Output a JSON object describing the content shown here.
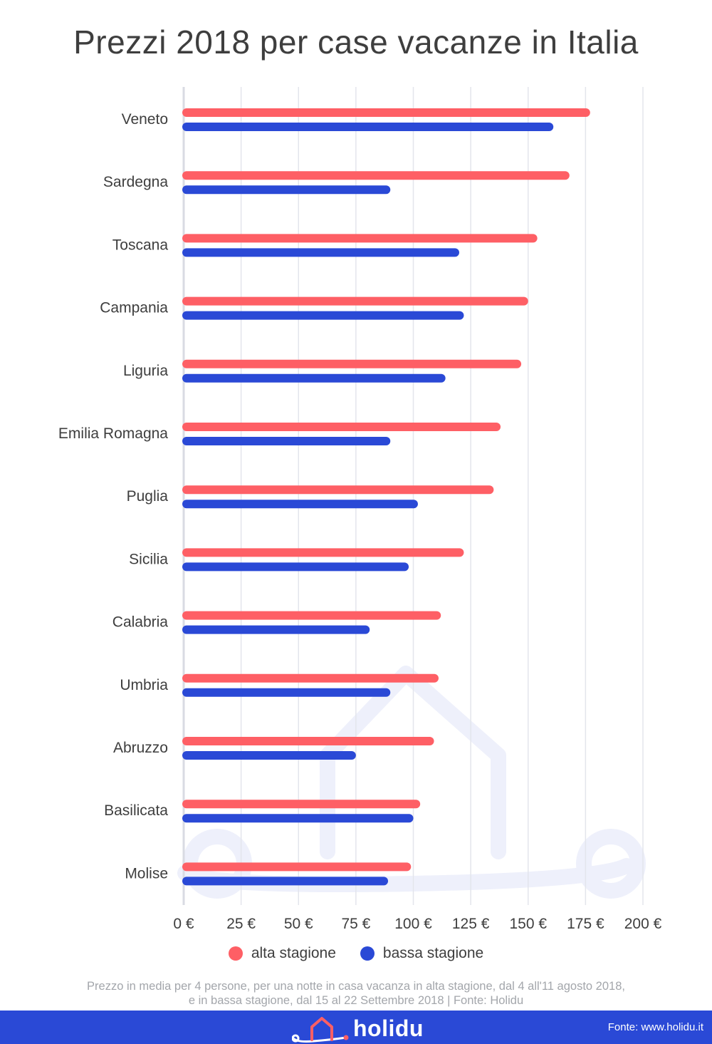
{
  "title": "Prezzi 2018 per case vacanze in Italia",
  "chart_data": {
    "type": "bar",
    "orientation": "horizontal",
    "title": "Prezzi 2018 per case vacanze in Italia",
    "categories": [
      "Veneto",
      "Sardegna",
      "Toscana",
      "Campania",
      "Liguria",
      "Emilia Romagna",
      "Puglia",
      "Sicilia",
      "Calabria",
      "Umbria",
      "Abruzzo",
      "Basilicata",
      "Molise"
    ],
    "series": [
      {
        "name": "alta stagione",
        "color": "#fe5f65",
        "values": [
          177,
          168,
          154,
          150,
          147,
          138,
          135,
          122,
          112,
          111,
          109,
          103,
          99
        ]
      },
      {
        "name": "bassa stagione",
        "color": "#2a49d6",
        "values": [
          161,
          90,
          120,
          122,
          114,
          90,
          102,
          98,
          81,
          90,
          75,
          100,
          89
        ]
      }
    ],
    "xlim": [
      0,
      200
    ],
    "ticks": [
      "0 €",
      "25 €",
      "50 €",
      "75 €",
      "100 €",
      "125 €",
      "150 €",
      "175 €",
      "200 €"
    ],
    "grid": true,
    "legend": "bottom"
  },
  "legend": {
    "alta_label": "alta stagione",
    "bassa_label": "bassa stagione",
    "alta_color": "#fe5f65",
    "bassa_color": "#2a49d6"
  },
  "footnote": {
    "line1": "Prezzo in media per 4 persone, per una notte in casa vacanza in alta stagione, dal 4 all'11 agosto 2018,",
    "line2": "e in bassa stagione, dal 15 al 22 Settembre 2018 | Fonte: Holidu"
  },
  "footer": {
    "brand": "holidu",
    "source": "Fonte: www.holidu.it",
    "logo_icon": "house-logo-icon"
  }
}
